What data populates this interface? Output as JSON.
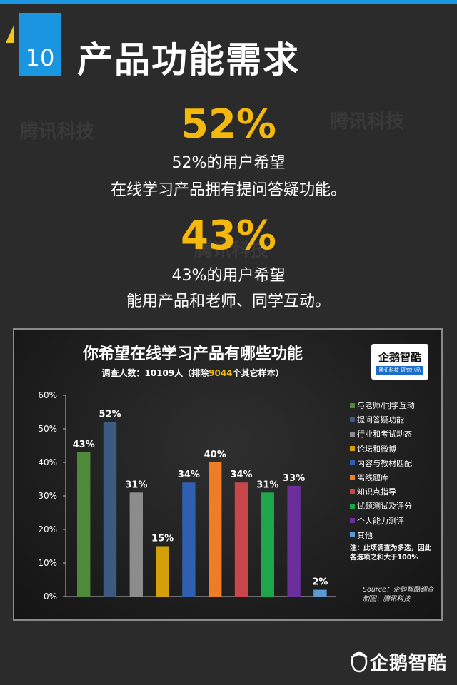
{
  "header": {
    "number": "10",
    "title": "产品功能需求"
  },
  "stats": [
    {
      "big": "52%",
      "line1": "52%的用户希望",
      "line2": "在线学习产品拥有提问答疑功能。"
    },
    {
      "big": "43%",
      "line1": "43%的用户希望",
      "line2": "能用产品和老师、同学互动。"
    }
  ],
  "watermark": "腾讯科技",
  "chart": {
    "title": "你希望在线学习产品有哪些功能",
    "subtitle_pre": "调查人数：10109人（排除",
    "subtitle_highlight": "9044",
    "subtitle_post": "个其它样本）",
    "logo_text": "企鹅智酷",
    "logo_tag": "腾讯科技 研究出品",
    "note_line1": "注：此项调查为多选，因此",
    "note_line2": "各选项之和大于100%",
    "source_line1": "Source：企鹅智酷调查",
    "source_line2": "制图：腾讯科技"
  },
  "chart_data": {
    "type": "bar",
    "title": "你希望在线学习产品有哪些功能",
    "categories": [
      "与老师/同学互动",
      "提问答疑功能",
      "行业和考试动态",
      "论坛和微博",
      "内容与教材匹配",
      "离线题库",
      "知识点指导",
      "试题测试及评分",
      "个人能力测评",
      "其他"
    ],
    "values": [
      43,
      52,
      31,
      15,
      34,
      40,
      34,
      31,
      33,
      2
    ],
    "value_labels": [
      "43%",
      "52%",
      "31%",
      "15%",
      "34%",
      "40%",
      "34%",
      "31%",
      "33%",
      "2%"
    ],
    "colors": [
      "#4f8a3a",
      "#3d5a80",
      "#8c8c8c",
      "#d4a00a",
      "#2f5fae",
      "#ef7d26",
      "#c9474a",
      "#1fa64a",
      "#6c2e9a",
      "#5b9bd5"
    ],
    "ylim": [
      0,
      60
    ],
    "yticks": [
      0,
      10,
      20,
      30,
      40,
      50,
      60
    ],
    "ytick_labels": [
      "0%",
      "10%",
      "20%",
      "30%",
      "40%",
      "50%",
      "60%"
    ],
    "legend_position": "right",
    "grid": false
  },
  "footer": {
    "brand": "企鹅智酷"
  }
}
